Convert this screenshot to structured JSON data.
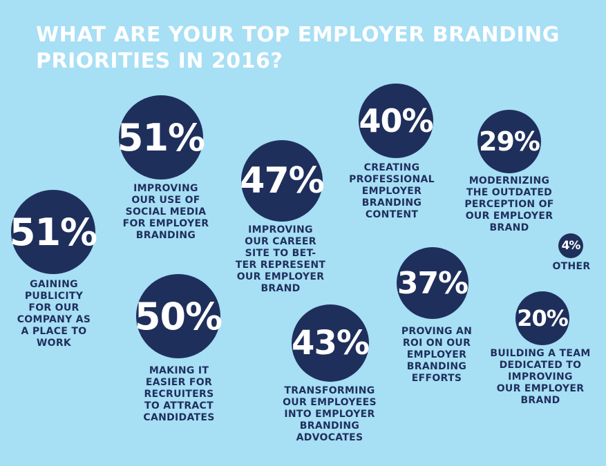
{
  "title_lines": [
    "WHAT ARE YOUR TOP EMPLOYER BRANDING",
    "PRIORITIES IN 2016?"
  ],
  "colors": {
    "background": "#a7dff5",
    "bubble": "#1f2f5c",
    "title": "#ffffff",
    "caption": "#1f2f5c"
  },
  "chart_data": {
    "type": "bubble",
    "title": "WHAT ARE YOUR TOP EMPLOYER BRANDING PRIORITIES IN 2016?",
    "unit": "%",
    "items": [
      {
        "value": 51,
        "label": "51%",
        "caption": [
          "GAINING",
          "PUBLICITY",
          "FOR OUR",
          "COMPANY AS",
          "A PLACE TO",
          "WORK"
        ]
      },
      {
        "value": 51,
        "label": "51%",
        "caption": [
          "IMPROVING",
          "OUR USE OF",
          "SOCIAL MEDIA",
          "FOR EMPLOYER",
          "BRANDING"
        ]
      },
      {
        "value": 50,
        "label": "50%",
        "caption": [
          "MAKING IT",
          "EASIER FOR",
          "RECRUITERS",
          "TO ATTRACT",
          "CANDIDATES"
        ]
      },
      {
        "value": 47,
        "label": "47%",
        "caption": [
          "IMPROVING",
          "OUR CAREER",
          "SITE TO BET-",
          "TER REPRESENT",
          "OUR EMPLOYER",
          "BRAND"
        ]
      },
      {
        "value": 43,
        "label": "43%",
        "caption": [
          "TRANSFORMING",
          "OUR EMPLOYEES",
          "INTO EMPLOYER",
          "BRANDING",
          "ADVOCATES"
        ]
      },
      {
        "value": 40,
        "label": "40%",
        "caption": [
          "CREATING",
          "PROFESSIONAL",
          "EMPLOYER",
          "BRANDING",
          "CONTENT"
        ]
      },
      {
        "value": 37,
        "label": "37%",
        "caption": [
          "PROVING AN",
          "ROI ON OUR",
          "EMPLOYER",
          "BRANDING",
          "EFFORTS"
        ]
      },
      {
        "value": 29,
        "label": "29%",
        "caption": [
          "MODERNIZING",
          "THE OUTDATED",
          "PERCEPTION OF",
          "OUR EMPLOYER",
          "BRAND"
        ]
      },
      {
        "value": 20,
        "label": "20%",
        "caption": [
          "BUILDING A TEAM",
          "DEDICATED TO",
          "IMPROVING",
          "OUR EMPLOYER",
          "BRAND"
        ]
      },
      {
        "value": 4,
        "label": "4%",
        "caption": [
          "OTHER"
        ]
      }
    ]
  }
}
